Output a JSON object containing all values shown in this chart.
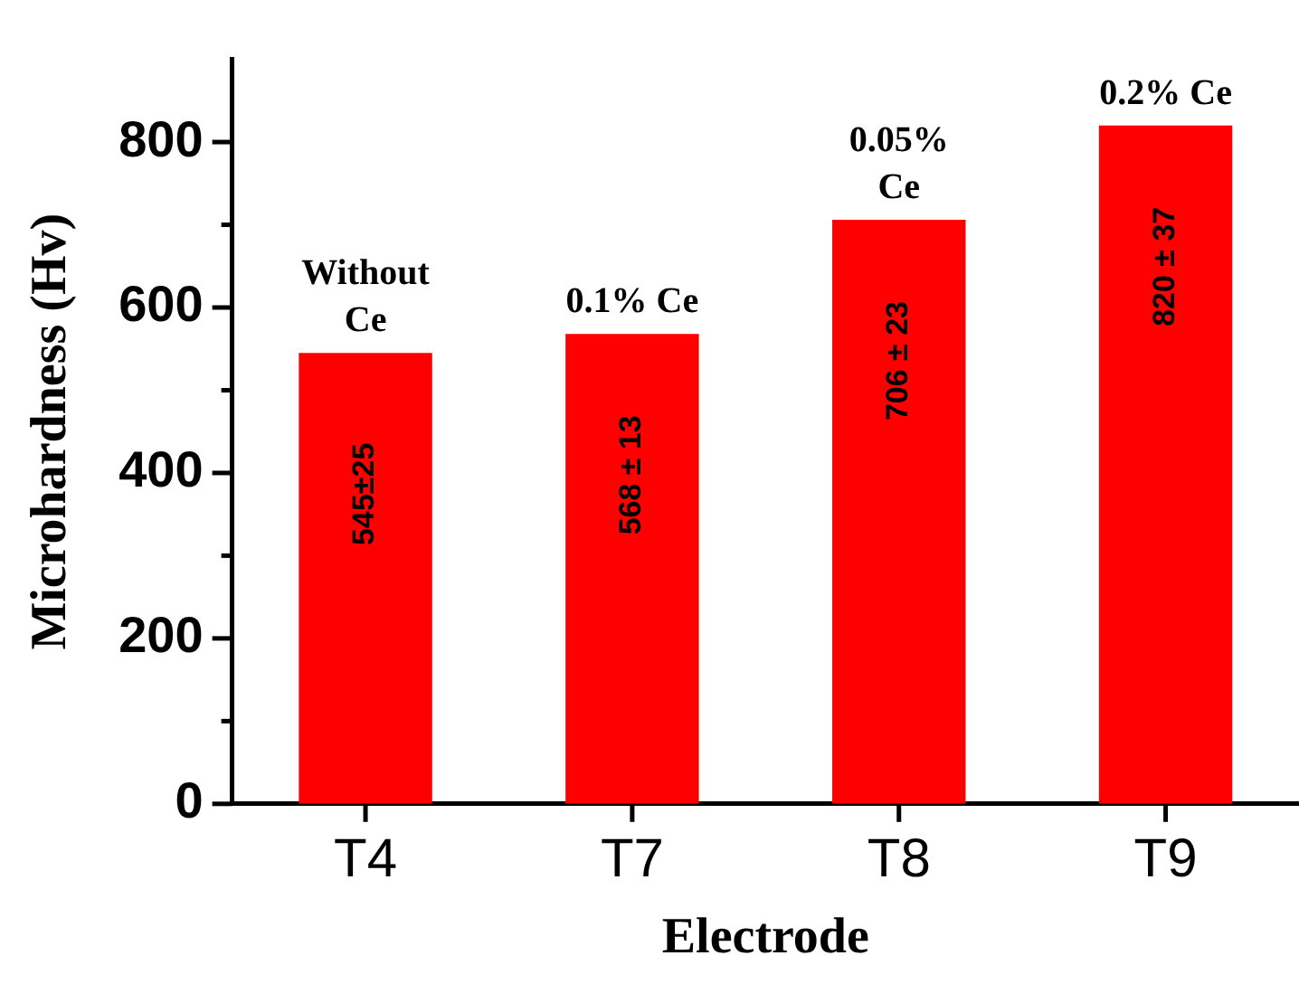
{
  "chart_data": {
    "type": "bar",
    "xlabel": "Electrode",
    "ylabel": "Microhardness (Hv)",
    "categories": [
      "T4",
      "T7",
      "T8",
      "T9"
    ],
    "values": [
      545,
      568,
      706,
      820
    ],
    "color": "#ff0000",
    "value_labels": [
      "545±25",
      "568 ± 13",
      "706 ± 23",
      "820 ± 37"
    ],
    "ylim": [
      0,
      900
    ],
    "yticks": [
      0,
      {
        "value": 100,
        "label": null
      },
      200,
      {
        "value": 300,
        "label": null
      },
      400,
      {
        "value": 500,
        "label": null
      },
      600,
      {
        "value": 700,
        "label": null
      },
      800
    ],
    "grid": false,
    "legend": false,
    "annotations": [
      {
        "text": "Without Ce",
        "x": "T4",
        "y": 545
      },
      {
        "text": "0.1% Ce",
        "x": "T7",
        "y": 568
      },
      {
        "text": "0.05% Ce",
        "x": "T8",
        "y": 706
      },
      {
        "text": "0.2% Ce",
        "x": "T9",
        "y": 820
      }
    ]
  }
}
